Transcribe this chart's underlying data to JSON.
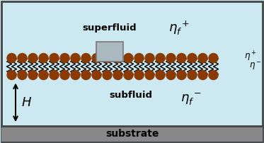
{
  "bg_color": "#cce8f0",
  "substrate_color": "#888888",
  "membrane_color": "#8B3A00",
  "tail_color": "#111111",
  "protein_color": "#aab8c0",
  "protein_border": "#777777",
  "outer_border_color": "#444444",
  "figsize": [
    3.73,
    2.02
  ],
  "dpi": 100,
  "superfluid_text": "superfluid",
  "subfluid_text": "subfluid",
  "substrate_text": "substrate"
}
